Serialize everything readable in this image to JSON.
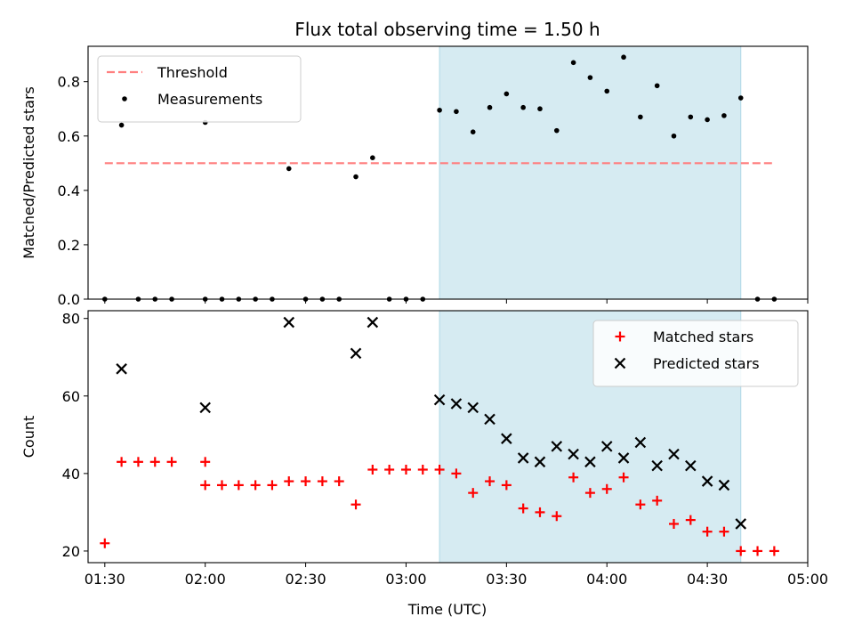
{
  "chart_data": {
    "type": "scatter",
    "title": "Flux total observing time = 1.50 h",
    "xlabel": "Time (UTC)",
    "x_ticks": [
      "01:30",
      "02:00",
      "02:30",
      "03:00",
      "03:30",
      "04:00",
      "04:30",
      "05:00"
    ],
    "x_range": [
      "01:25",
      "05:00"
    ],
    "shaded_interval": [
      "03:10",
      "04:40"
    ],
    "shade_color": "#add8e6",
    "panels": [
      {
        "ylabel": "Matched/Predicted stars",
        "ylim": [
          0,
          0.93
        ],
        "y_ticks": [
          "0.0",
          "0.2",
          "0.4",
          "0.6",
          "0.8"
        ],
        "legend_position": "top-left",
        "threshold": {
          "name": "Threshold",
          "value": 0.5,
          "x_range": [
            "01:30",
            "04:50"
          ],
          "color": "#ff7f7f",
          "style": "dashed"
        },
        "series": [
          {
            "name": "Measurements",
            "marker": "dot",
            "color": "#000000",
            "points": [
              [
                "01:30",
                0
              ],
              [
                "01:35",
                0.64
              ],
              [
                "01:40",
                0
              ],
              [
                "01:45",
                0
              ],
              [
                "01:50",
                0
              ],
              [
                "02:00",
                0
              ],
              [
                "02:00",
                0.65
              ],
              [
                "02:05",
                0
              ],
              [
                "02:10",
                0
              ],
              [
                "02:15",
                0
              ],
              [
                "02:20",
                0
              ],
              [
                "02:25",
                0.48
              ],
              [
                "02:30",
                0
              ],
              [
                "02:35",
                0
              ],
              [
                "02:40",
                0
              ],
              [
                "02:45",
                0.45
              ],
              [
                "02:50",
                0.52
              ],
              [
                "02:55",
                0
              ],
              [
                "03:00",
                0
              ],
              [
                "03:05",
                0
              ],
              [
                "03:10",
                0.695
              ],
              [
                "03:15",
                0.69
              ],
              [
                "03:20",
                0.615
              ],
              [
                "03:25",
                0.705
              ],
              [
                "03:30",
                0.755
              ],
              [
                "03:35",
                0.705
              ],
              [
                "03:40",
                0.7
              ],
              [
                "03:45",
                0.62
              ],
              [
                "03:50",
                0.87
              ],
              [
                "03:55",
                0.815
              ],
              [
                "04:00",
                0.765
              ],
              [
                "04:05",
                0.89
              ],
              [
                "04:10",
                0.67
              ],
              [
                "04:15",
                0.785
              ],
              [
                "04:20",
                0.6
              ],
              [
                "04:25",
                0.67
              ],
              [
                "04:30",
                0.66
              ],
              [
                "04:35",
                0.675
              ],
              [
                "04:40",
                0.74
              ],
              [
                "04:45",
                0
              ],
              [
                "04:50",
                0
              ]
            ]
          }
        ]
      },
      {
        "ylabel": "Count",
        "ylim": [
          17,
          82
        ],
        "y_ticks": [
          "20",
          "40",
          "60",
          "80"
        ],
        "legend_position": "top-right",
        "series": [
          {
            "name": "Matched stars",
            "marker": "plus",
            "color": "#ff0000",
            "points": [
              [
                "01:30",
                22
              ],
              [
                "01:35",
                43
              ],
              [
                "01:40",
                43
              ],
              [
                "01:45",
                43
              ],
              [
                "01:50",
                43
              ],
              [
                "02:00",
                43
              ],
              [
                "02:00",
                37
              ],
              [
                "02:05",
                37
              ],
              [
                "02:10",
                37
              ],
              [
                "02:15",
                37
              ],
              [
                "02:20",
                37
              ],
              [
                "02:25",
                38
              ],
              [
                "02:30",
                38
              ],
              [
                "02:35",
                38
              ],
              [
                "02:40",
                38
              ],
              [
                "02:45",
                32
              ],
              [
                "02:50",
                41
              ],
              [
                "02:55",
                41
              ],
              [
                "03:00",
                41
              ],
              [
                "03:05",
                41
              ],
              [
                "03:10",
                41
              ],
              [
                "03:15",
                40
              ],
              [
                "03:20",
                35
              ],
              [
                "03:25",
                38
              ],
              [
                "03:30",
                37
              ],
              [
                "03:35",
                31
              ],
              [
                "03:40",
                30
              ],
              [
                "03:45",
                29
              ],
              [
                "03:50",
                39
              ],
              [
                "03:55",
                35
              ],
              [
                "04:00",
                36
              ],
              [
                "04:05",
                39
              ],
              [
                "04:10",
                32
              ],
              [
                "04:15",
                33
              ],
              [
                "04:20",
                27
              ],
              [
                "04:25",
                28
              ],
              [
                "04:30",
                25
              ],
              [
                "04:35",
                25
              ],
              [
                "04:40",
                20
              ],
              [
                "04:45",
                20
              ],
              [
                "04:50",
                20
              ]
            ]
          },
          {
            "name": "Predicted stars",
            "marker": "x",
            "color": "#000000",
            "points": [
              [
                "01:35",
                67
              ],
              [
                "02:00",
                57
              ],
              [
                "02:25",
                79
              ],
              [
                "02:45",
                71
              ],
              [
                "02:50",
                79
              ],
              [
                "03:10",
                59
              ],
              [
                "03:15",
                58
              ],
              [
                "03:20",
                57
              ],
              [
                "03:25",
                54
              ],
              [
                "03:30",
                49
              ],
              [
                "03:35",
                44
              ],
              [
                "03:40",
                43
              ],
              [
                "03:45",
                47
              ],
              [
                "03:50",
                45
              ],
              [
                "03:55",
                43
              ],
              [
                "04:00",
                47
              ],
              [
                "04:05",
                44
              ],
              [
                "04:10",
                48
              ],
              [
                "04:15",
                42
              ],
              [
                "04:20",
                45
              ],
              [
                "04:25",
                42
              ],
              [
                "04:30",
                38
              ],
              [
                "04:35",
                37
              ],
              [
                "04:40",
                27
              ]
            ]
          }
        ]
      }
    ]
  }
}
